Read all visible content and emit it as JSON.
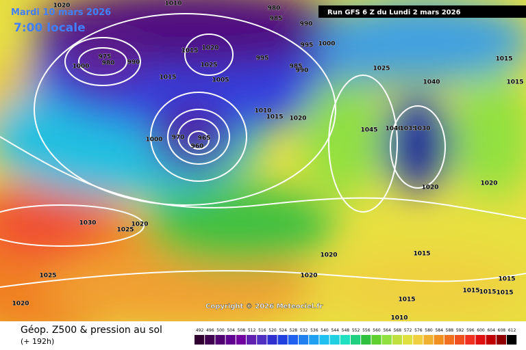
{
  "header": {
    "date": "Mardi 10 mars 2026",
    "time": "7:00 locale",
    "run": "Run GFS 6 Z du Lundi 2 mars 2026"
  },
  "footer": {
    "title": "Géop. Z500 & pression au sol",
    "lead": "(+ 192h)",
    "copyright": "Copyright © 2026 Meteociel.fr"
  },
  "scale": [
    492,
    496,
    500,
    504,
    508,
    512,
    516,
    520,
    524,
    528,
    532,
    536,
    540,
    544,
    548,
    552,
    556,
    560,
    564,
    568,
    572,
    576,
    580,
    584,
    588,
    592,
    596,
    600,
    604,
    608,
    612
  ],
  "isobar_labels": [
    1020,
    1010,
    980,
    985,
    990,
    1020,
    1015,
    975,
    980,
    990,
    1000,
    1025,
    995,
    995,
    1000,
    985,
    990,
    1015,
    1005,
    1025,
    1040,
    1015,
    1015,
    1010,
    1015,
    1020,
    1045,
    1040,
    1035,
    1030,
    1000,
    970,
    965,
    960,
    1020,
    1020,
    1030,
    1025,
    1020,
    1020,
    1015,
    1025,
    1020,
    1015,
    1015,
    1015,
    1015,
    1015,
    1020,
    1010
  ]
}
